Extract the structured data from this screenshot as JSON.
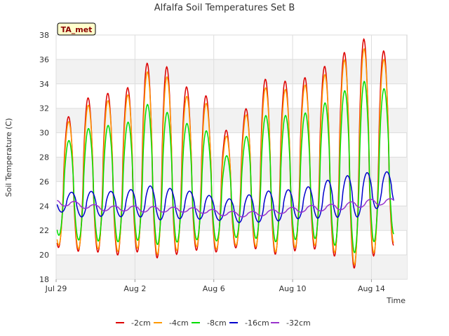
{
  "chart_data": {
    "type": "line",
    "title": "Alfalfa Soil Temperatures Set B",
    "xlabel": "Time",
    "ylabel": "Soil Temperature (C)",
    "badge": "TA_met",
    "xlim_days": [
      0,
      17.8
    ],
    "ylim": [
      18,
      38
    ],
    "yticks": [
      18,
      20,
      22,
      24,
      26,
      28,
      30,
      32,
      34,
      36,
      38
    ],
    "xticks": [
      {
        "day": 0,
        "label": "Jul 29"
      },
      {
        "day": 4,
        "label": "Aug 2"
      },
      {
        "day": 8,
        "label": "Aug 6"
      },
      {
        "day": 12,
        "label": "Aug 10"
      },
      {
        "day": 16,
        "label": "Aug 14"
      }
    ],
    "grid": true,
    "legend_position": "bottom",
    "start_day": 0.05,
    "end_day": 17.15,
    "series": [
      {
        "name": "-2cm",
        "color": "#dd0000",
        "peak_phase": 0.62,
        "daily_max": [
          31.1,
          32.8,
          33.2,
          33.4,
          35.7,
          35.6,
          33.8,
          33.4,
          30.0,
          31.6,
          34.4,
          34.2,
          34.4,
          35.3,
          36.4,
          37.8,
          36.7
        ],
        "daily_min": [
          20.6,
          20.1,
          20.3,
          19.8,
          20.5,
          19.3,
          20.5,
          20.3,
          20.2,
          20.8,
          20.3,
          19.9,
          20.6,
          20.4,
          19.6,
          18.5,
          20.8
        ]
      },
      {
        "name": "-4cm",
        "color": "#ff9900",
        "peak_phase": 0.63,
        "daily_max": [
          30.7,
          32.2,
          32.6,
          32.8,
          35.0,
          34.8,
          33.0,
          32.8,
          29.5,
          31.1,
          33.7,
          33.5,
          33.8,
          34.6,
          35.8,
          37.0,
          36.0
        ],
        "daily_min": [
          20.8,
          20.3,
          20.6,
          20.1,
          20.8,
          19.6,
          20.8,
          20.6,
          20.4,
          21.0,
          20.5,
          20.1,
          20.9,
          20.7,
          19.9,
          18.8,
          21.0
        ]
      },
      {
        "name": "-8cm",
        "color": "#00dd00",
        "peak_phase": 0.64,
        "daily_max": [
          29.2,
          30.3,
          30.6,
          30.6,
          32.4,
          31.8,
          30.8,
          30.5,
          27.9,
          29.4,
          31.4,
          31.4,
          31.5,
          32.3,
          33.3,
          34.3,
          33.6
        ],
        "daily_min": [
          21.6,
          21.0,
          21.2,
          21.0,
          21.3,
          20.6,
          21.3,
          21.2,
          21.1,
          21.6,
          21.2,
          21.0,
          21.4,
          21.3,
          20.5,
          20.0,
          21.7
        ]
      },
      {
        "name": "-16cm",
        "color": "#0000cc",
        "peak_phase": 0.78,
        "daily_max": [
          25.1,
          25.2,
          25.2,
          25.2,
          25.7,
          25.5,
          25.3,
          25.0,
          24.5,
          24.8,
          25.2,
          25.3,
          25.4,
          26.0,
          26.4,
          26.7,
          26.8
        ],
        "daily_min": [
          23.5,
          23.0,
          23.2,
          23.1,
          23.1,
          22.8,
          23.0,
          22.9,
          22.8,
          22.6,
          22.7,
          22.8,
          23.0,
          23.0,
          23.1,
          23.1,
          24.0
        ]
      },
      {
        "name": "-32cm",
        "color": "#9933cc",
        "peak_phase": 0.95,
        "daily_max": [
          24.5,
          24.2,
          24.0,
          24.0,
          24.0,
          23.9,
          23.9,
          23.8,
          23.6,
          23.5,
          23.6,
          23.8,
          24.0,
          24.1,
          24.2,
          24.5,
          24.6
        ],
        "daily_min": [
          24.0,
          23.8,
          23.6,
          23.6,
          23.5,
          23.5,
          23.5,
          23.4,
          23.2,
          23.1,
          23.2,
          23.4,
          23.5,
          23.6,
          23.7,
          23.9,
          24.1
        ]
      }
    ]
  }
}
